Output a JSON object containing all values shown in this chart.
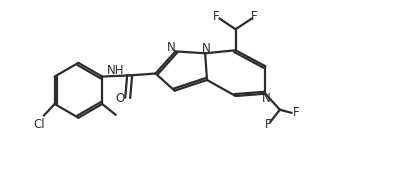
{
  "bg_color": "#ffffff",
  "line_color": "#2d2d2d",
  "line_width": 1.6,
  "font_size": 8.5,
  "figsize": [
    3.97,
    1.92
  ],
  "dpi": 100,
  "xlim": [
    0,
    10
  ],
  "ylim": [
    0,
    5
  ]
}
